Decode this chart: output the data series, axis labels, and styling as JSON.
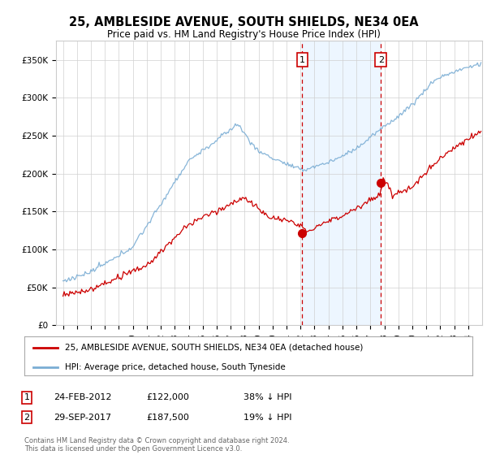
{
  "title": "25, AMBLESIDE AVENUE, SOUTH SHIELDS, NE34 0EA",
  "subtitle": "Price paid vs. HM Land Registry's House Price Index (HPI)",
  "legend_line1": "25, AMBLESIDE AVENUE, SOUTH SHIELDS, NE34 0EA (detached house)",
  "legend_line2": "HPI: Average price, detached house, South Tyneside",
  "transaction1_date_label": "24-FEB-2012",
  "transaction1_price": 122000,
  "transaction1_year": 2012.13,
  "transaction2_date_label": "29-SEP-2017",
  "transaction2_price": 187500,
  "transaction2_year": 2017.75,
  "transaction1_pct": "38% ↓ HPI",
  "transaction2_pct": "19% ↓ HPI",
  "footer": "Contains HM Land Registry data © Crown copyright and database right 2024.\nThis data is licensed under the Open Government Licence v3.0.",
  "hpi_color": "#7aadd4",
  "price_color": "#cc0000",
  "marker_color": "#cc0000",
  "vline_color": "#cc0000",
  "shade_color": "#ddeeff",
  "ylim_min": 0,
  "ylim_max": 375000,
  "xlim_min": 1994.5,
  "xlim_max": 2025.0,
  "background_color": "#ffffff"
}
